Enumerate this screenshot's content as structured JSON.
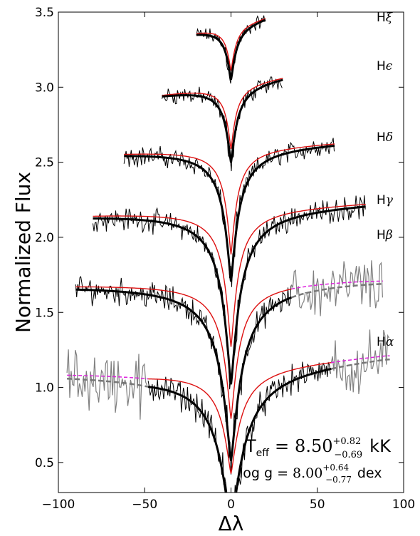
{
  "chart_data": {
    "type": "line",
    "xlabel": "Δλ",
    "ylabel": "Normalized Flux",
    "xlim": [
      -100,
      100
    ],
    "ylim": [
      0.3,
      3.5
    ],
    "x_ticks": [
      -100,
      -50,
      0,
      50,
      100
    ],
    "x_tick_labels": [
      "−100",
      "−50",
      "0",
      "50",
      "100"
    ],
    "y_ticks": [
      0.5,
      1.0,
      1.5,
      2.0,
      2.5,
      3.0,
      3.5
    ],
    "y_tick_labels": [
      "0.5",
      "1.0",
      "1.5",
      "2.0",
      "2.5",
      "3.0",
      "3.5"
    ],
    "grid": false,
    "legend": "none",
    "colors": {
      "observed": "#000000",
      "observed_excluded": "#808080",
      "model_best": "#000000",
      "model_alt": "#dd1111",
      "model_ext_alt": "#dd22dd",
      "model_ext_best": "#777777"
    },
    "lines": [
      {
        "label": "H",
        "greek": "ξ",
        "xrange": [
          -20,
          20
        ],
        "cont_left": 3.38,
        "cont_right": 3.48,
        "depth": 0.38,
        "width": 3.2,
        "alt_depth": 0.32,
        "alt_width": 2.8
      },
      {
        "label": "H",
        "greek": "ϵ",
        "xrange": [
          -40,
          30
        ],
        "cont_left": 2.96,
        "cont_right": 3.08,
        "depth": 0.53,
        "width": 3.6,
        "alt_depth": 0.44,
        "alt_width": 3.0
      },
      {
        "label": "H",
        "greek": "δ",
        "xrange": [
          -62,
          60
        ],
        "cont_left": 2.57,
        "cont_right": 2.64,
        "depth": 0.9,
        "width": 4.5,
        "alt_depth": 0.72,
        "alt_width": 3.6
      },
      {
        "label": "H",
        "greek": "γ",
        "xrange": [
          -80,
          78
        ],
        "cont_left": 2.16,
        "cont_right": 2.24,
        "depth": 1.18,
        "width": 5.4,
        "alt_depth": 0.93,
        "alt_width": 4.2
      },
      {
        "label": "H",
        "greek": "β",
        "xrange": [
          -90,
          35
        ],
        "ext_xrange": [
          35,
          88
        ],
        "cont_left": 1.69,
        "cont_right": 1.72,
        "depth": 1.2,
        "width": 6.5,
        "alt_depth": 0.92,
        "alt_width": 4.8
      },
      {
        "label": "H",
        "greek": "α",
        "xrange": [
          -48,
          58
        ],
        "ext_xrange_left": [
          -95,
          -48
        ],
        "ext_xrange_right": [
          58,
          92
        ],
        "cont_left": 1.1,
        "cont_right": 1.2,
        "depth": 1.08,
        "width": 8.0,
        "alt_depth": 0.72,
        "alt_width": 5.8
      }
    ],
    "teff_label": "T",
    "teff_sub": "eff",
    "teff_eq": "=",
    "teff_value": "8.50",
    "teff_plus": "+0.82",
    "teff_minus": "−0.69",
    "teff_unit": "kK",
    "logg_label": "log g",
    "logg_eq": "=",
    "logg_value": "8.00",
    "logg_plus": "+0.64",
    "logg_minus": "−0.77",
    "logg_unit": "dex"
  }
}
